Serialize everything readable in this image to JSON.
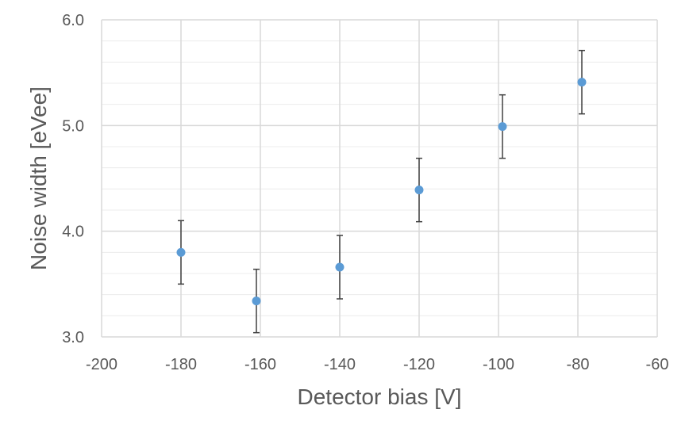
{
  "chart_data": {
    "type": "scatter",
    "title": "",
    "xlabel": "Detector bias [V]",
    "ylabel": "Noise width [eVee]",
    "xlim": [
      -200,
      -60
    ],
    "ylim": [
      3.0,
      6.0
    ],
    "x_ticks": [
      -200,
      -180,
      -160,
      -140,
      -120,
      -100,
      -80,
      -60
    ],
    "x_tick_labels": [
      "-200",
      "-180",
      "-160",
      "-140",
      "-120",
      "-100",
      "-80",
      "-60"
    ],
    "y_ticks": [
      3.0,
      4.0,
      5.0,
      6.0
    ],
    "y_tick_labels": [
      "3.0",
      "4.0",
      "5.0",
      "6.0"
    ],
    "grid": true,
    "legend": "none",
    "series": [
      {
        "x": [
          -180,
          -161,
          -140,
          -120,
          -99,
          -79
        ],
        "y": [
          3.8,
          3.34,
          3.66,
          4.39,
          4.99,
          5.41
        ],
        "error_y": [
          0.3,
          0.3,
          0.3,
          0.3,
          0.3,
          0.3
        ],
        "color": "#5b9bd5"
      }
    ],
    "colors": {
      "marker": "#5b9bd5",
      "error_bar": "#404040",
      "major_grid": "#d9d9d9",
      "minor_grid": "#ececec",
      "text": "#595959"
    }
  }
}
